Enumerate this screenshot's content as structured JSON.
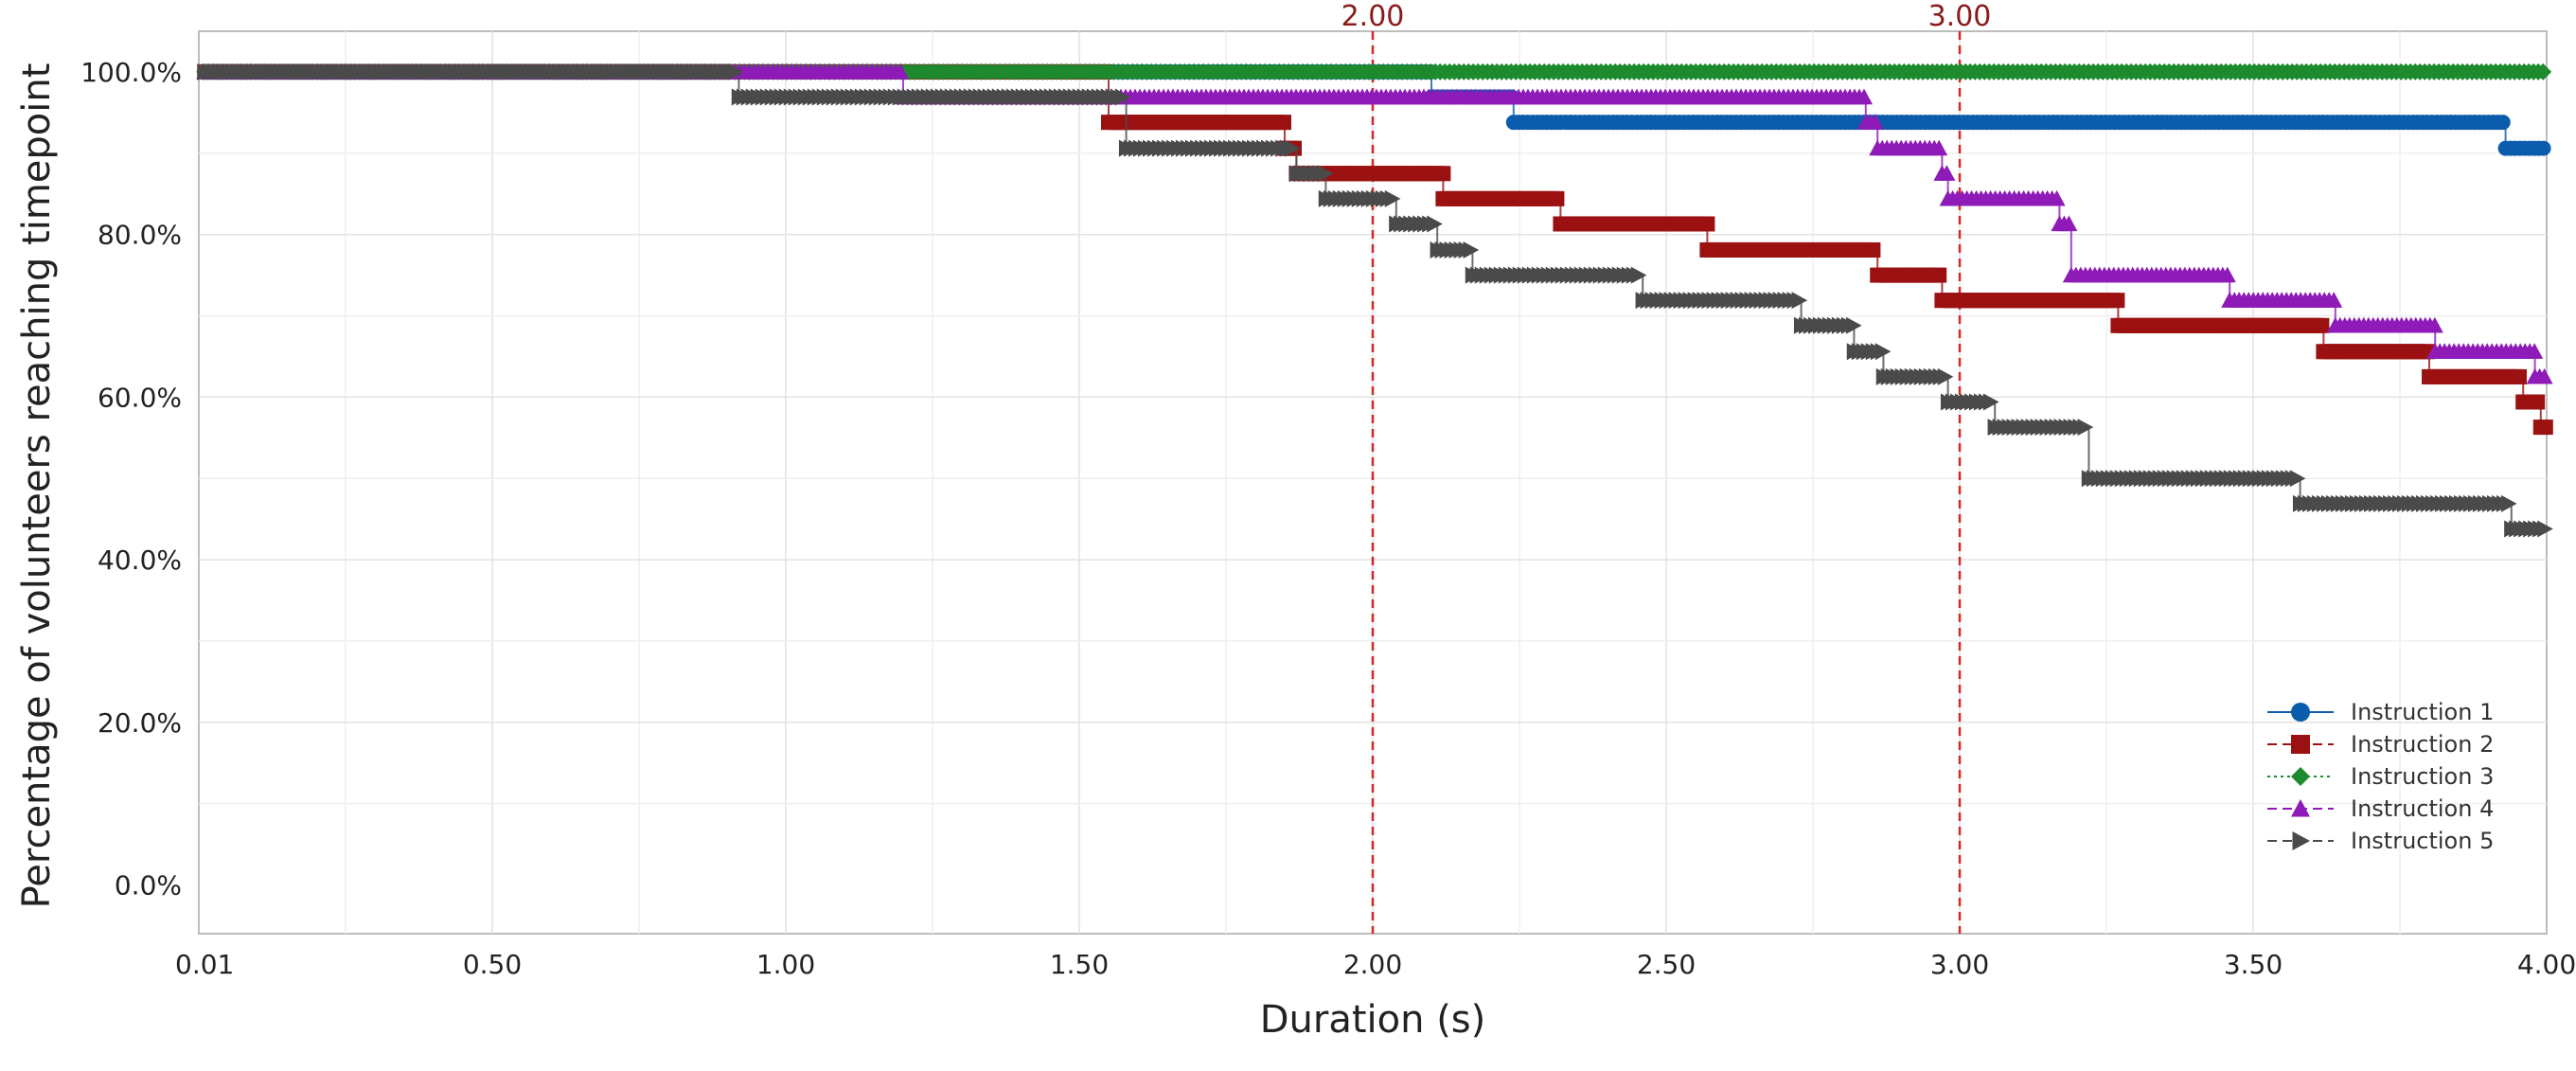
{
  "chart_data": {
    "type": "line",
    "title": "",
    "xlabel": "Duration (s)",
    "ylabel": "Percentage of volunteers reaching timepoint",
    "xlim": [
      0.0,
      4.0
    ],
    "ylim": [
      -0.06,
      1.05
    ],
    "x_ticks": [
      0.01,
      0.5,
      1.0,
      1.5,
      2.0,
      2.5,
      3.0,
      3.5,
      4.0
    ],
    "x_tick_labels": [
      "0.01",
      "0.50",
      "1.00",
      "1.50",
      "2.00",
      "2.50",
      "3.00",
      "3.50",
      "4.00"
    ],
    "y_ticks": [
      0.0,
      0.2,
      0.4,
      0.6,
      0.8,
      1.0
    ],
    "y_tick_labels": [
      "0.0%",
      "20.0%",
      "40.0%",
      "60.0%",
      "80.0%",
      "100.0%"
    ],
    "grid": true,
    "legend_position": "bottom-right",
    "reference_lines": [
      {
        "x": 2.0,
        "label": "2.00",
        "color": "#d62728"
      },
      {
        "x": 3.0,
        "label": "3.00",
        "color": "#d62728"
      }
    ],
    "series": [
      {
        "name": "Instruction 1",
        "color": "#0b5cad",
        "marker": "circle",
        "dash": "solid",
        "x": [
          0.01,
          2.1,
          2.24,
          3.93,
          4.0
        ],
        "y": [
          1.0,
          0.969,
          0.938,
          0.906,
          0.906
        ]
      },
      {
        "name": "Instruction 2",
        "color": "#9b1111",
        "marker": "square",
        "dash": "dashed",
        "x": [
          0.01,
          1.55,
          1.85,
          1.87,
          2.12,
          2.32,
          2.57,
          2.86,
          2.97,
          3.27,
          3.62,
          3.8,
          3.96,
          3.99,
          4.0
        ],
        "y": [
          1.0,
          0.938,
          0.906,
          0.875,
          0.844,
          0.813,
          0.781,
          0.75,
          0.719,
          0.688,
          0.656,
          0.625,
          0.594,
          0.563,
          0.563
        ]
      },
      {
        "name": "Instruction 3",
        "color": "#1e8a2e",
        "marker": "diamond",
        "dash": "dotted",
        "x": [
          0.01,
          4.0
        ],
        "y": [
          1.0,
          1.0
        ]
      },
      {
        "name": "Instruction 4",
        "color": "#8e1ab8",
        "marker": "triangle-up",
        "dash": "dashed",
        "x": [
          0.01,
          1.2,
          2.84,
          2.86,
          2.97,
          2.98,
          3.17,
          3.19,
          3.46,
          3.64,
          3.81,
          3.98,
          4.0
        ],
        "y": [
          1.0,
          0.969,
          0.938,
          0.906,
          0.875,
          0.844,
          0.813,
          0.75,
          0.719,
          0.688,
          0.656,
          0.625,
          0.625
        ]
      },
      {
        "name": "Instruction 5",
        "color": "#4a4a4a",
        "marker": "triangle-right",
        "dash": "dashed",
        "x": [
          0.01,
          0.92,
          1.58,
          1.87,
          1.92,
          2.04,
          2.11,
          2.17,
          2.46,
          2.73,
          2.82,
          2.87,
          2.98,
          3.06,
          3.22,
          3.58,
          3.94,
          4.0
        ],
        "y": [
          1.0,
          0.969,
          0.906,
          0.875,
          0.844,
          0.813,
          0.781,
          0.75,
          0.719,
          0.688,
          0.656,
          0.625,
          0.594,
          0.563,
          0.5,
          0.469,
          0.438,
          0.438
        ]
      }
    ]
  }
}
